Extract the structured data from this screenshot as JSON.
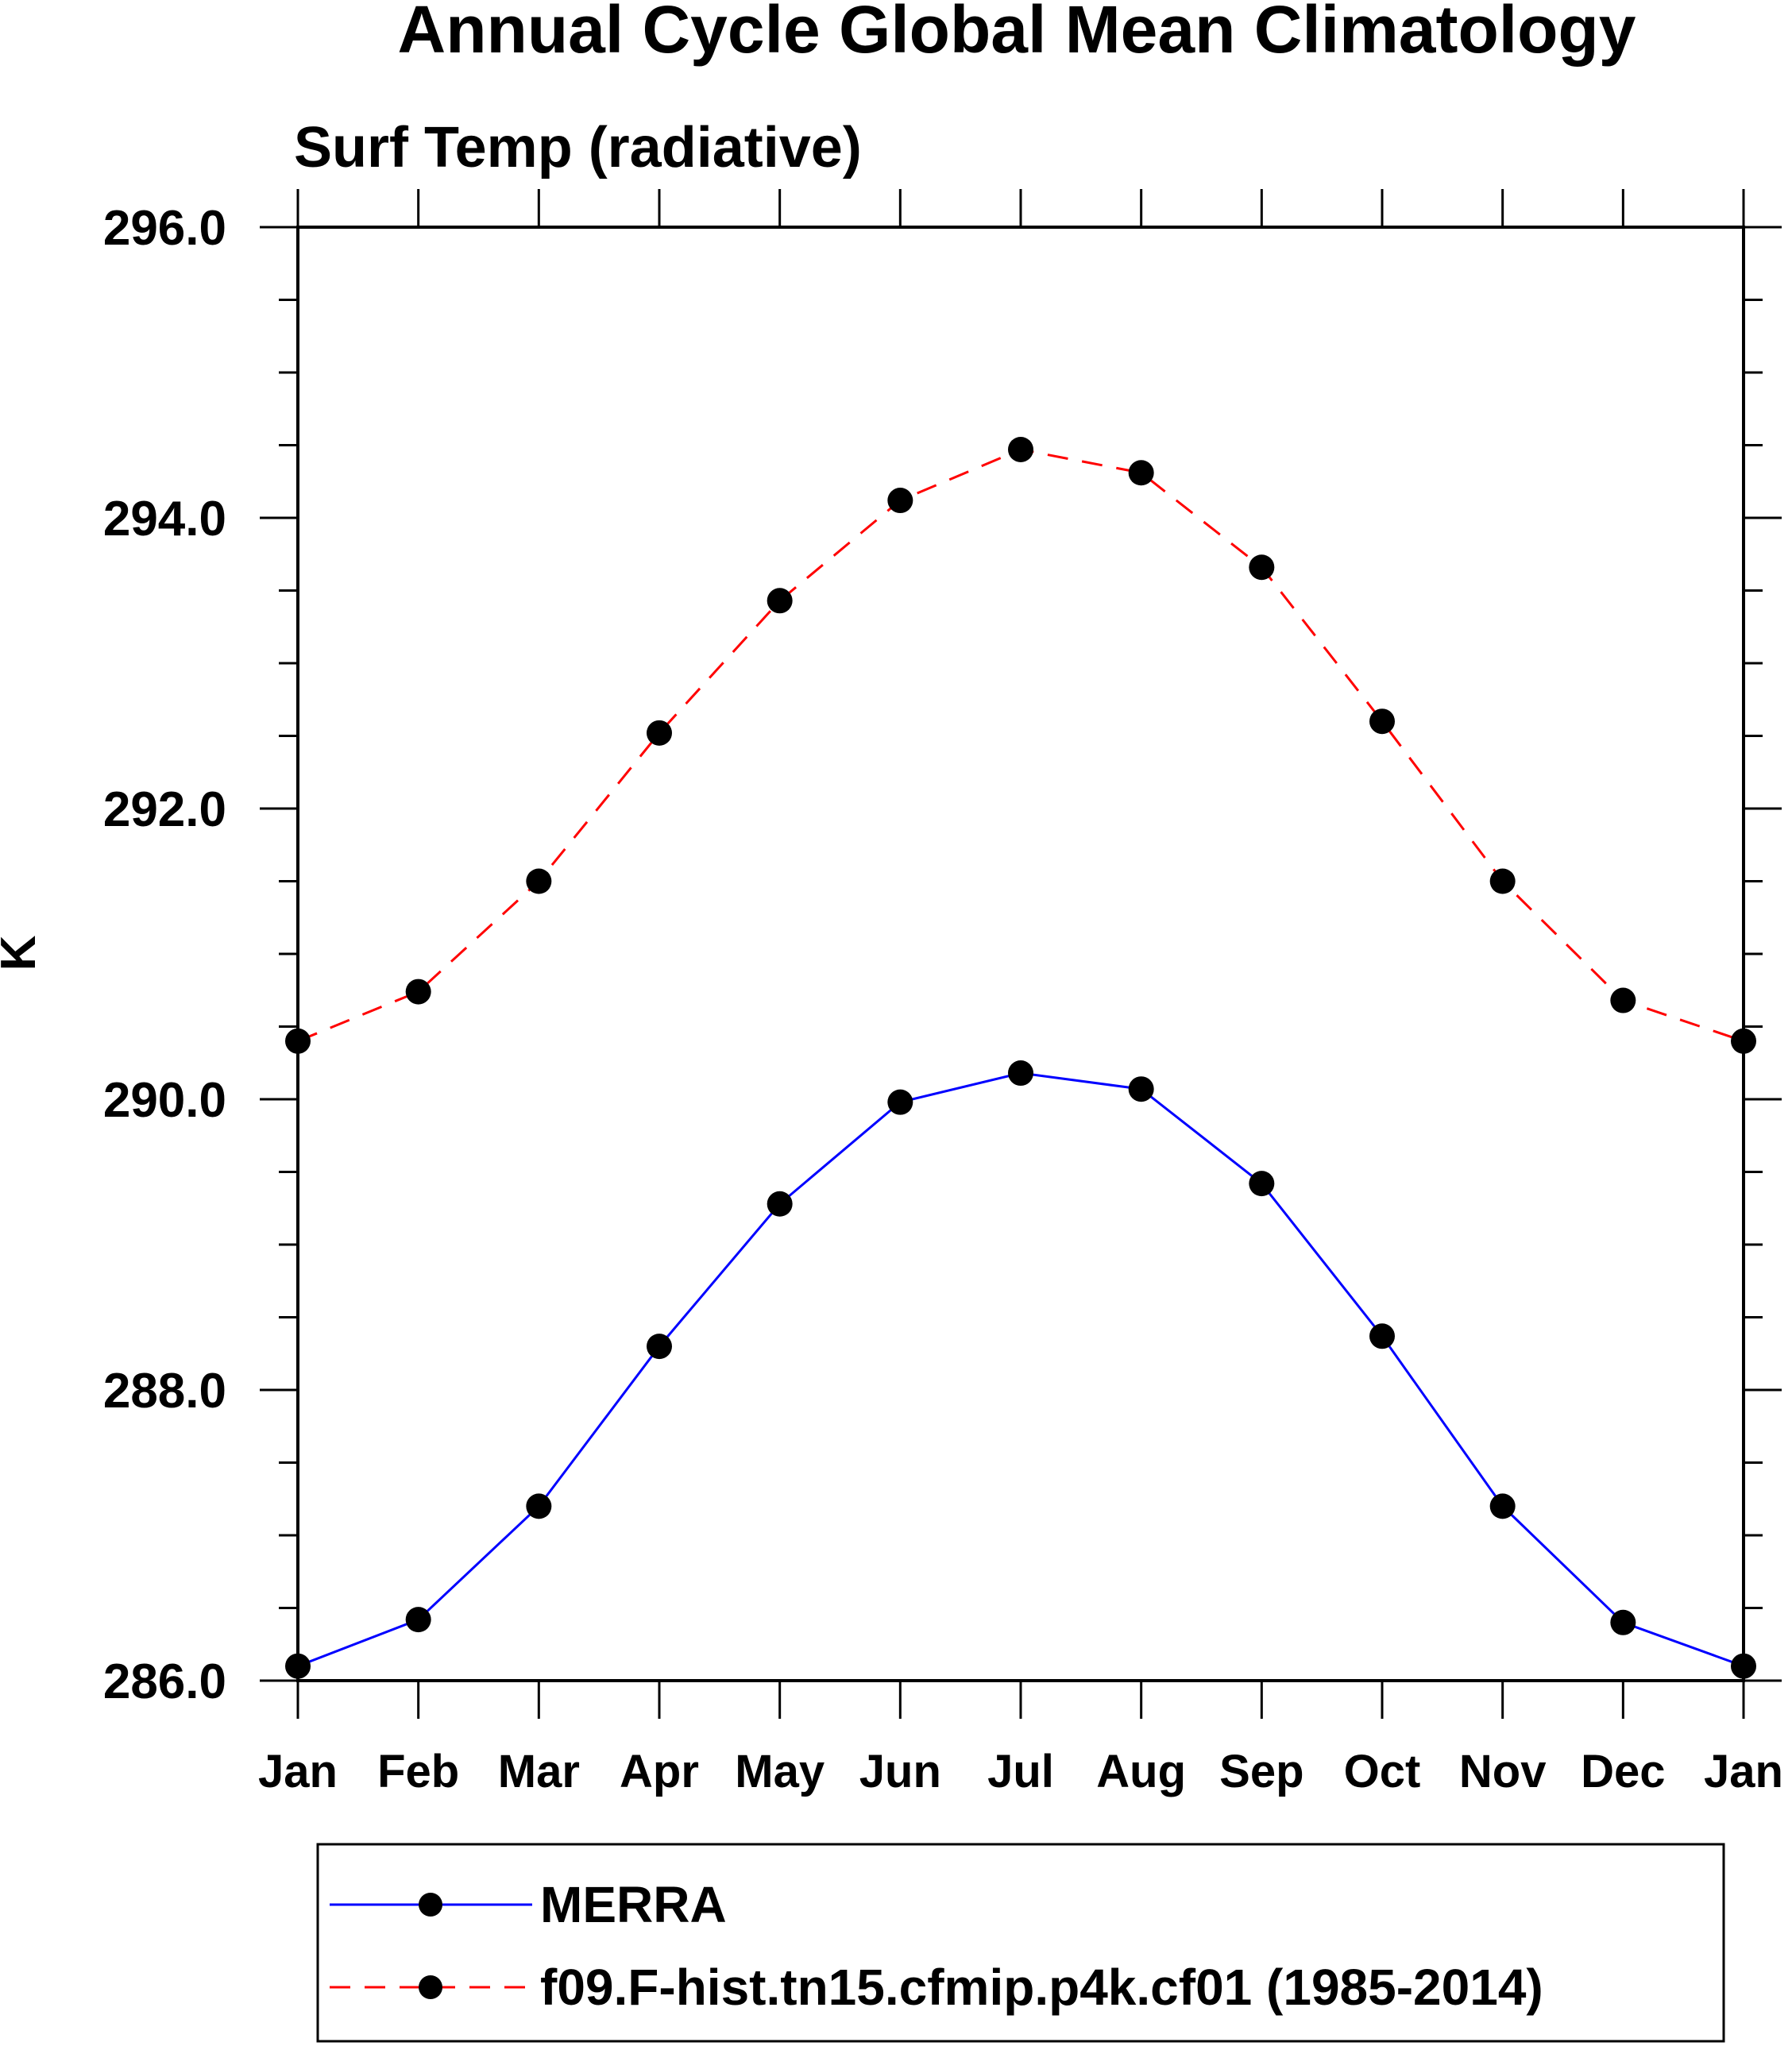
{
  "chart_data": {
    "type": "line",
    "title": "Annual Cycle Global Mean Climatology",
    "subtitle": "Surf Temp (radiative)",
    "xlabel": "",
    "ylabel": "K",
    "categories": [
      "Jan",
      "Feb",
      "Mar",
      "Apr",
      "May",
      "Jun",
      "Jul",
      "Aug",
      "Sep",
      "Oct",
      "Nov",
      "Dec",
      "Jan"
    ],
    "ylim": [
      286.0,
      296.0
    ],
    "yticks": [
      286.0,
      288.0,
      290.0,
      292.0,
      294.0,
      296.0
    ],
    "ytick_labels": [
      "286.0",
      "288.0",
      "290.0",
      "292.0",
      "294.0",
      "296.0"
    ],
    "y_minor_step": 0.5,
    "grid": false,
    "legend_position": "bottom",
    "series": [
      {
        "name": "MERRA",
        "color": "#0000ff",
        "line_style": "solid",
        "marker": "filled-circle",
        "values": [
          286.1,
          286.42,
          287.2,
          288.3,
          289.28,
          289.98,
          290.18,
          290.07,
          289.42,
          288.37,
          287.2,
          286.4,
          286.1
        ]
      },
      {
        "name": "f09.F-hist.tn15.cfmip.p4k.cf01 (1985-2014)",
        "color": "#ff0000",
        "line_style": "dashed",
        "marker": "filled-circle",
        "values": [
          290.4,
          290.74,
          291.5,
          292.52,
          293.43,
          294.12,
          294.47,
          294.31,
          293.66,
          292.6,
          291.5,
          290.68,
          290.4
        ]
      }
    ]
  }
}
